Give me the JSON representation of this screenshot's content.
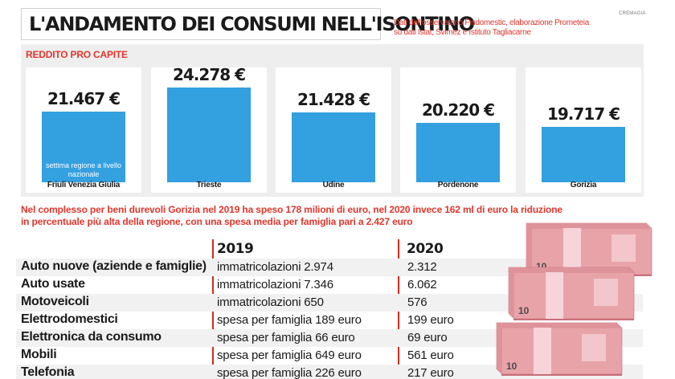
{
  "header": {
    "title": "L'ANDAMENTO DEI CONSUMI NELL'ISONTINO",
    "source": "Dati dell'osservatorio Findomestic, elaborazione Prometeia su dati Istat, Svimez e Istituto Tagliacarne",
    "credit": "CREMAGIA"
  },
  "chart_data": {
    "type": "bar",
    "title": "REDDITO PRO CAPITE",
    "categories": [
      "Friuli Venezia Giulia",
      "Trieste",
      "Udine",
      "Pordenone",
      "Gorizia"
    ],
    "values": [
      21467,
      24278,
      21428,
      20220,
      19717
    ],
    "value_labels": [
      "21.467 €",
      "24.278 €",
      "21.428 €",
      "20.220 €",
      "19.717 €"
    ],
    "annotation": "settima regione a livello nazionale",
    "bar_color": "#33a0e0"
  },
  "summary": {
    "line1": "Nel complesso per beni durevoli Gorizia nel 2019 ha speso 178 milioni di euro, nel 2020 invece 162 ml di euro la riduzione",
    "line2": "in percentuale più alta della regione, con una spesa media per famiglia pari a 2.427 euro"
  },
  "table": {
    "headers": [
      "2019",
      "2020"
    ],
    "rows": [
      {
        "category": "Auto nuove (aziende e famiglie)",
        "y2019": "immatricolazioni 2.974",
        "y2020": "2.312"
      },
      {
        "category": "Auto usate",
        "y2019": "immatricolazioni 7.346",
        "y2020": "6.062"
      },
      {
        "category": "Motoveicoli",
        "y2019": "immatricolazioni 650",
        "y2020": "576"
      },
      {
        "category": "Elettrodomestici",
        "y2019": "spesa per famiglia 189 euro",
        "y2020": "199 euro"
      },
      {
        "category": "Elettronica da consumo",
        "y2019": "spesa per famiglia 66 euro",
        "y2020": "69 euro"
      },
      {
        "category": "Mobili",
        "y2019": "spesa per famiglia 649 euro",
        "y2020": "561 euro"
      },
      {
        "category": "Telefonia",
        "y2019": "spesa per famiglia 226 euro",
        "y2020": "217 euro"
      }
    ]
  },
  "illustration": {
    "subject": "euro-banknote-stacks",
    "note_label": "10",
    "colors": {
      "note": "#e8a3a9",
      "band": "#f6d4d8",
      "dark": "#c96f78"
    }
  },
  "colors": {
    "accent": "#e0362c",
    "divider": "#d52b1e",
    "panel": "#eeeeee",
    "row_shade": "#f1f1f1"
  }
}
